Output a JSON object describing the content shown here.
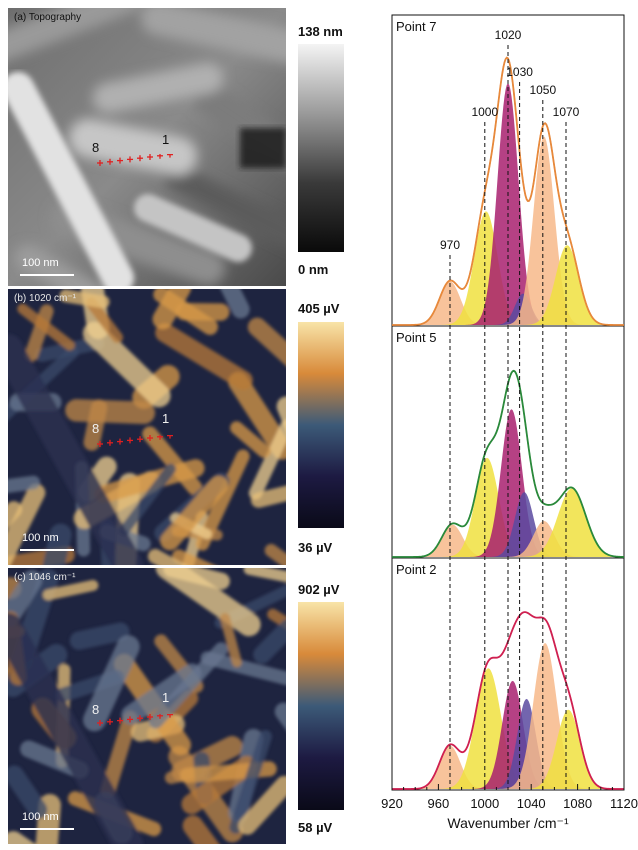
{
  "maps": [
    {
      "id": "a",
      "label": "(a) Topography",
      "scale_label": "100 nm",
      "point_start": "8",
      "point_end": "1",
      "colorbar": {
        "max": "138 nm",
        "min": "0 nm",
        "colors": [
          "#f4f4f4",
          "#9a9a9a",
          "#3a3a3a",
          "#0a0a0a"
        ]
      }
    },
    {
      "id": "b",
      "label": "(b) 1020 cm⁻¹",
      "scale_label": "100 nm",
      "point_start": "8",
      "point_end": "1",
      "colorbar": {
        "max": "405 µV",
        "min": "36 µV",
        "colors": [
          "#f8e4a8",
          "#d88a3a",
          "#3c5a78",
          "#1d1a42",
          "#0a0a18"
        ]
      }
    },
    {
      "id": "c",
      "label": "(c) 1046 cm⁻¹",
      "scale_label": "100 nm",
      "point_start": "8",
      "point_end": "1",
      "colorbar": {
        "max": "902 µV",
        "min": "58 µV",
        "colors": [
          "#f8e4a8",
          "#d88a3a",
          "#3c5a78",
          "#1d1a42",
          "#0a0a18"
        ]
      }
    }
  ],
  "chart_data": {
    "type": "area",
    "xlabel": "Wavenumber /cm⁻¹",
    "xlim": [
      920,
      1120
    ],
    "xticks": [
      920,
      960,
      1000,
      1040,
      1080,
      1120
    ],
    "xtick_labels": [
      "920",
      "960",
      "1000",
      "1040",
      "1080",
      "1120"
    ],
    "reference_lines": [
      970,
      1000,
      1020,
      1030,
      1050,
      1070
    ],
    "reference_labels": [
      "970",
      "1000",
      "1020",
      "1030",
      "1050",
      "1070"
    ],
    "panels": [
      {
        "title": "Point 7",
        "fit_color": "#e8893a",
        "data_color": "#5b3fa0",
        "components": [
          {
            "center": 970,
            "height": 0.18,
            "width": 9,
            "color": "#f7b98a"
          },
          {
            "center": 1001,
            "height": 0.47,
            "width": 10,
            "color": "#f0e040"
          },
          {
            "center": 1020,
            "height": 1.0,
            "width": 9,
            "color": "#a8206e"
          },
          {
            "center": 1033,
            "height": 0.13,
            "width": 7,
            "color": "#5b4aa0"
          },
          {
            "center": 1051,
            "height": 0.78,
            "width": 9,
            "color": "#f7b98a"
          },
          {
            "center": 1071,
            "height": 0.33,
            "width": 10,
            "color": "#f0e040"
          }
        ]
      },
      {
        "title": "Point 5",
        "fit_color": "#2a8a3a",
        "data_color": "#5b3fa0",
        "components": [
          {
            "center": 972,
            "height": 0.18,
            "width": 9,
            "color": "#f7b98a"
          },
          {
            "center": 1002,
            "height": 0.55,
            "width": 10,
            "color": "#f0e040"
          },
          {
            "center": 1023,
            "height": 0.82,
            "width": 9,
            "color": "#a8206e"
          },
          {
            "center": 1034,
            "height": 0.36,
            "width": 8,
            "color": "#5b4aa0"
          },
          {
            "center": 1051,
            "height": 0.2,
            "width": 9,
            "color": "#f7b98a"
          },
          {
            "center": 1075,
            "height": 0.38,
            "width": 12,
            "color": "#f0e040"
          }
        ]
      },
      {
        "title": "Point 2",
        "fit_color": "#d02050",
        "data_color": "#7a2f8f",
        "components": [
          {
            "center": 970,
            "height": 0.24,
            "width": 9,
            "color": "#f7b98a"
          },
          {
            "center": 1003,
            "height": 0.67,
            "width": 11,
            "color": "#f0e040"
          },
          {
            "center": 1024,
            "height": 0.6,
            "width": 9,
            "color": "#a8206e"
          },
          {
            "center": 1036,
            "height": 0.5,
            "width": 8,
            "color": "#5b4aa0"
          },
          {
            "center": 1052,
            "height": 0.81,
            "width": 10,
            "color": "#f7b98a"
          },
          {
            "center": 1072,
            "height": 0.44,
            "width": 10,
            "color": "#f0e040"
          }
        ]
      }
    ]
  }
}
